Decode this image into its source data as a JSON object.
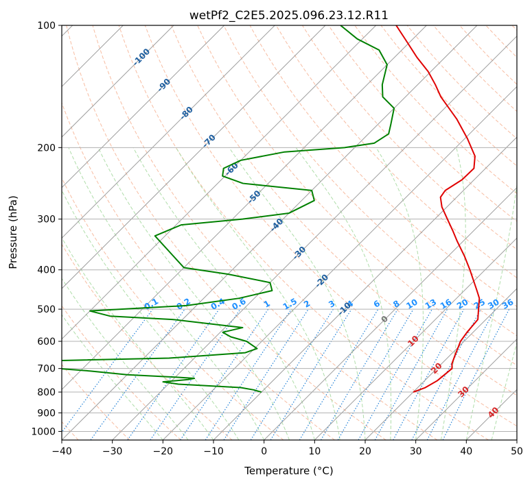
{
  "chart_data": {
    "type": "line",
    "subtype": "skew-t log-p diagram",
    "title": "wetPf2_C2E5.2025.096.23.12.R11",
    "xlabel": "Temperature (°C)",
    "ylabel": "Pressure (hPa)",
    "xlim": [
      -40,
      50
    ],
    "ylim": [
      1050,
      100
    ],
    "y_scale": "log",
    "grid": true,
    "x_ticks": [
      -40,
      -30,
      -20,
      -10,
      0,
      10,
      20,
      30,
      40,
      50
    ],
    "y_ticks": [
      100,
      200,
      300,
      400,
      500,
      600,
      700,
      800,
      900,
      1000
    ],
    "series": [
      {
        "name": "",
        "color": "#e00000",
        "points": [
          [
            800,
            20.0
          ],
          [
            780,
            21.5
          ],
          [
            750,
            22.5
          ],
          [
            720,
            22.8
          ],
          [
            700,
            23.0
          ],
          [
            680,
            22.0
          ],
          [
            650,
            21.0
          ],
          [
            620,
            20.0
          ],
          [
            600,
            19.3
          ],
          [
            570,
            18.8
          ],
          [
            530,
            18.4
          ],
          [
            500,
            16.5
          ],
          [
            470,
            14.5
          ],
          [
            450,
            12.5
          ],
          [
            400,
            7.0
          ],
          [
            370,
            3.2
          ],
          [
            340,
            -1.2
          ],
          [
            320,
            -4.2
          ],
          [
            300,
            -7.5
          ],
          [
            280,
            -11.0
          ],
          [
            265,
            -13.2
          ],
          [
            255,
            -13.6
          ],
          [
            240,
            -12.4
          ],
          [
            225,
            -12.3
          ],
          [
            210,
            -14.5
          ],
          [
            190,
            -19.5
          ],
          [
            170,
            -25.5
          ],
          [
            150,
            -33.0
          ],
          [
            140,
            -36.5
          ],
          [
            130,
            -40.5
          ],
          [
            120,
            -45.5
          ],
          [
            110,
            -50.5
          ],
          [
            100,
            -56.0
          ]
        ]
      },
      {
        "name": "",
        "color": "#008000",
        "points": [
          [
            800,
            -10.0
          ],
          [
            790,
            -12.0
          ],
          [
            780,
            -15.0
          ],
          [
            765,
            -28.0
          ],
          [
            755,
            -31.5
          ],
          [
            745,
            -27.0
          ],
          [
            740,
            -26.0
          ],
          [
            735,
            -30.0
          ],
          [
            725,
            -40.0
          ],
          [
            710,
            -48.0
          ],
          [
            700,
            -55.0
          ],
          [
            675,
            -70.0
          ],
          [
            660,
            -35.0
          ],
          [
            640,
            -21.0
          ],
          [
            625,
            -19.5
          ],
          [
            600,
            -23.0
          ],
          [
            585,
            -27.0
          ],
          [
            570,
            -29.5
          ],
          [
            555,
            -26.5
          ],
          [
            530,
            -42.0
          ],
          [
            520,
            -55.0
          ],
          [
            505,
            -60.0
          ],
          [
            490,
            -42.0
          ],
          [
            470,
            -33.0
          ],
          [
            450,
            -28.0
          ],
          [
            430,
            -30.0
          ],
          [
            410,
            -40.0
          ],
          [
            395,
            -50.0
          ],
          [
            330,
            -62.0
          ],
          [
            310,
            -59.0
          ],
          [
            300,
            -48.0
          ],
          [
            290,
            -40.0
          ],
          [
            270,
            -37.5
          ],
          [
            255,
            -40.0
          ],
          [
            245,
            -55.0
          ],
          [
            235,
            -60.5
          ],
          [
            225,
            -61.8
          ],
          [
            215,
            -60.0
          ],
          [
            205,
            -53.0
          ],
          [
            200,
            -42.0
          ],
          [
            195,
            -37.0
          ],
          [
            185,
            -36.0
          ],
          [
            175,
            -37.5
          ],
          [
            160,
            -40.0
          ],
          [
            150,
            -44.5
          ],
          [
            140,
            -47.0
          ],
          [
            125,
            -50.0
          ],
          [
            115,
            -54.5
          ],
          [
            108,
            -61.0
          ],
          [
            100,
            -67.0
          ]
        ]
      }
    ],
    "isotherm_labels": {
      "blue": [
        "-100",
        "-90",
        "-80",
        "-70",
        "-60",
        "-50",
        "-40",
        "-30",
        "-20",
        "-10"
      ],
      "gray": [
        "0"
      ],
      "red": [
        "10",
        "20",
        "30",
        "40"
      ]
    },
    "mixing_ratio_labels": [
      "0.1",
      "0.2",
      "0.4",
      "0.6",
      "1",
      "1.5",
      "2",
      "3",
      "4",
      "6",
      "8",
      "10",
      "13",
      "16",
      "20",
      "25",
      "30",
      "36"
    ],
    "colors": {
      "temperature": "#e00000",
      "dewpoint": "#008000",
      "isotherm": "#9e9e9e",
      "dry_adiabat": "#f4a582",
      "moist_adiabat": "#a6d9a0",
      "mixing_ratio": "#1e7fd6",
      "isotherm_label_negative": "#2060a0",
      "isotherm_label_positive": "#d62728",
      "isotherm_label_zero": "#777777",
      "mixing_ratio_label": "#1e90ff"
    }
  }
}
